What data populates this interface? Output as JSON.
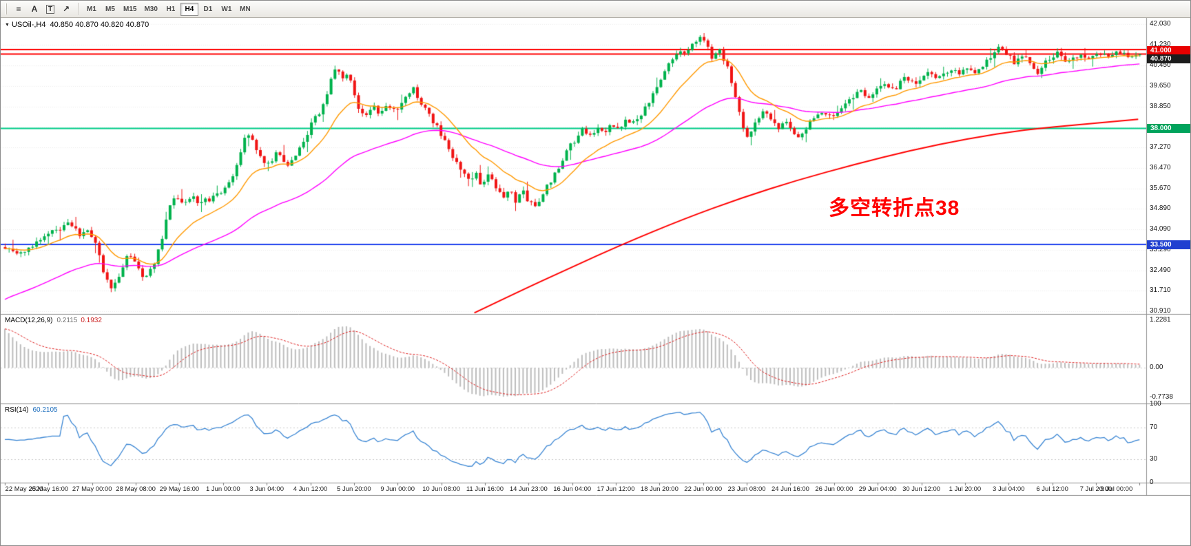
{
  "toolbar": {
    "tools": [
      {
        "name": "menu-lines-icon",
        "glyph": "≡",
        "boxed": false
      },
      {
        "name": "text-tool-a-icon",
        "glyph": "A",
        "boxed": false
      },
      {
        "name": "text-label-t-icon",
        "glyph": "T",
        "boxed": true
      },
      {
        "name": "arrow-tool-icon",
        "glyph": "↗",
        "boxed": false
      }
    ],
    "timeframes": [
      "M1",
      "M5",
      "M15",
      "M30",
      "H1",
      "H4",
      "D1",
      "W1",
      "MN"
    ],
    "active_timeframe": "H4"
  },
  "chart": {
    "symbol_title": "USOil-,H4",
    "ohlc": "40.850 40.870 40.820 40.870",
    "annotation": {
      "text": "多空转折点38",
      "color": "#ff0000"
    },
    "colors": {
      "bull": "#00b24c",
      "bear": "#f01414",
      "ma_fast": "#ff9900",
      "ma_slow": "#ff00ff",
      "ma_long": "#ff0000",
      "macd_hist": "#bdbdbd",
      "macd_signal": "#e02020",
      "rsi_line": "#3a86d4",
      "grid": "#ededed",
      "divider": "#909090",
      "level_red": "#ff0000",
      "level_green": "#00cc88",
      "level_blue": "#2244ee"
    },
    "price_axis": {
      "top_price": 42.28,
      "bottom_price": 30.78,
      "labels": [
        "42.030",
        "41.230",
        "40.450",
        "39.650",
        "38.850",
        "38.050",
        "37.270",
        "36.470",
        "35.670",
        "34.890",
        "34.090",
        "33.290",
        "32.490",
        "31.710",
        "30.910"
      ],
      "badges": [
        {
          "text": "41.000",
          "color": "#e80000",
          "price": 41.02
        },
        {
          "text": "40.870",
          "color": "#1c1c1c",
          "price": 40.7
        },
        {
          "text": "38.000",
          "color": "#00a35c",
          "price": 38.0
        },
        {
          "text": "33.500",
          "color": "#2040d0",
          "price": 33.5
        }
      ]
    },
    "levels": [
      {
        "price": 41.05,
        "color": "#ff0000",
        "width": 2
      },
      {
        "price": 40.88,
        "color": "#ff0000",
        "width": 2
      },
      {
        "price": 38.0,
        "color": "#00cc88",
        "width": 2
      },
      {
        "price": 33.5,
        "color": "#2244ee",
        "width": 2
      }
    ]
  },
  "chart_data": {
    "type": "candlestick",
    "symbol": "USOil",
    "timeframe": "H4",
    "n": 290,
    "seed": 9,
    "ma_fast_period": 16,
    "ma_slow_period": 55,
    "ma_slow_init": 31.3,
    "anchors": [
      [
        0.0,
        33.4
      ],
      [
        0.012,
        33.05
      ],
      [
        0.024,
        33.5
      ],
      [
        0.036,
        33.85
      ],
      [
        0.048,
        34.1
      ],
      [
        0.057,
        34.35
      ],
      [
        0.065,
        33.9
      ],
      [
        0.073,
        34.15
      ],
      [
        0.08,
        33.45
      ],
      [
        0.088,
        32.3
      ],
      [
        0.095,
        31.78
      ],
      [
        0.102,
        32.4
      ],
      [
        0.109,
        33.2
      ],
      [
        0.116,
        32.7
      ],
      [
        0.123,
        32.15
      ],
      [
        0.13,
        32.65
      ],
      [
        0.137,
        33.5
      ],
      [
        0.144,
        34.8
      ],
      [
        0.15,
        35.3
      ],
      [
        0.157,
        35.05
      ],
      [
        0.165,
        35.35
      ],
      [
        0.173,
        35.1
      ],
      [
        0.181,
        35.3
      ],
      [
        0.187,
        35.45
      ],
      [
        0.192,
        35.55
      ],
      [
        0.198,
        35.9
      ],
      [
        0.204,
        36.45
      ],
      [
        0.209,
        37.2
      ],
      [
        0.213,
        37.9
      ],
      [
        0.218,
        37.6
      ],
      [
        0.222,
        37.15
      ],
      [
        0.227,
        36.75
      ],
      [
        0.233,
        36.55
      ],
      [
        0.239,
        37.1
      ],
      [
        0.245,
        36.7
      ],
      [
        0.251,
        36.55
      ],
      [
        0.257,
        37.0
      ],
      [
        0.263,
        37.45
      ],
      [
        0.27,
        38.2
      ],
      [
        0.277,
        38.6
      ],
      [
        0.283,
        39.3
      ],
      [
        0.289,
        40.05
      ],
      [
        0.293,
        40.4
      ],
      [
        0.298,
        39.85
      ],
      [
        0.302,
        40.2
      ],
      [
        0.307,
        39.5
      ],
      [
        0.312,
        38.75
      ],
      [
        0.318,
        38.5
      ],
      [
        0.324,
        38.85
      ],
      [
        0.33,
        38.6
      ],
      [
        0.336,
        38.9
      ],
      [
        0.342,
        38.7
      ],
      [
        0.348,
        38.85
      ],
      [
        0.354,
        39.2
      ],
      [
        0.36,
        39.55
      ],
      [
        0.366,
        39.0
      ],
      [
        0.372,
        38.6
      ],
      [
        0.378,
        38.2
      ],
      [
        0.384,
        37.8
      ],
      [
        0.39,
        37.3
      ],
      [
        0.396,
        36.8
      ],
      [
        0.402,
        36.3
      ],
      [
        0.408,
        35.95
      ],
      [
        0.414,
        36.25
      ],
      [
        0.42,
        35.85
      ],
      [
        0.426,
        36.2
      ],
      [
        0.432,
        35.75
      ],
      [
        0.438,
        35.35
      ],
      [
        0.444,
        35.65
      ],
      [
        0.45,
        35.2
      ],
      [
        0.456,
        35.55
      ],
      [
        0.462,
        35.1
      ],
      [
        0.468,
        34.95
      ],
      [
        0.474,
        35.45
      ],
      [
        0.48,
        35.9
      ],
      [
        0.486,
        36.35
      ],
      [
        0.492,
        36.85
      ],
      [
        0.498,
        37.3
      ],
      [
        0.504,
        37.65
      ],
      [
        0.51,
        37.95
      ],
      [
        0.516,
        37.7
      ],
      [
        0.522,
        38.1
      ],
      [
        0.528,
        37.85
      ],
      [
        0.534,
        38.2
      ],
      [
        0.54,
        37.95
      ],
      [
        0.546,
        38.3
      ],
      [
        0.552,
        38.1
      ],
      [
        0.558,
        38.45
      ],
      [
        0.564,
        38.75
      ],
      [
        0.57,
        39.2
      ],
      [
        0.576,
        39.8
      ],
      [
        0.582,
        40.3
      ],
      [
        0.588,
        40.75
      ],
      [
        0.594,
        41.1
      ],
      [
        0.6,
        40.8
      ],
      [
        0.606,
        41.25
      ],
      [
        0.612,
        41.6
      ],
      [
        0.618,
        41.2
      ],
      [
        0.624,
        40.7
      ],
      [
        0.63,
        41.0
      ],
      [
        0.636,
        40.45
      ],
      [
        0.642,
        39.6
      ],
      [
        0.648,
        38.4
      ],
      [
        0.653,
        37.5
      ],
      [
        0.658,
        37.9
      ],
      [
        0.664,
        38.4
      ],
      [
        0.67,
        38.7
      ],
      [
        0.676,
        38.35
      ],
      [
        0.682,
        38.0
      ],
      [
        0.688,
        38.3
      ],
      [
        0.694,
        37.9
      ],
      [
        0.7,
        37.65
      ],
      [
        0.706,
        38.05
      ],
      [
        0.712,
        38.35
      ],
      [
        0.72,
        38.6
      ],
      [
        0.728,
        38.4
      ],
      [
        0.736,
        38.75
      ],
      [
        0.744,
        39.1
      ],
      [
        0.752,
        39.45
      ],
      [
        0.76,
        39.2
      ],
      [
        0.768,
        39.55
      ],
      [
        0.776,
        39.75
      ],
      [
        0.784,
        39.55
      ],
      [
        0.792,
        39.9
      ],
      [
        0.8,
        39.7
      ],
      [
        0.808,
        39.95
      ],
      [
        0.816,
        40.15
      ],
      [
        0.824,
        39.95
      ],
      [
        0.832,
        40.25
      ],
      [
        0.84,
        40.1
      ],
      [
        0.848,
        40.4
      ],
      [
        0.856,
        40.2
      ],
      [
        0.864,
        40.6
      ],
      [
        0.872,
        40.95
      ],
      [
        0.878,
        41.15
      ],
      [
        0.884,
        40.8
      ],
      [
        0.89,
        40.55
      ],
      [
        0.896,
        40.85
      ],
      [
        0.902,
        40.6
      ],
      [
        0.908,
        40.1
      ],
      [
        0.914,
        40.35
      ],
      [
        0.92,
        40.7
      ],
      [
        0.928,
        40.9
      ],
      [
        0.936,
        40.6
      ],
      [
        0.944,
        40.85
      ],
      [
        0.952,
        40.7
      ],
      [
        0.96,
        40.95
      ],
      [
        0.97,
        40.8
      ],
      [
        0.98,
        40.95
      ],
      [
        0.99,
        40.82
      ],
      [
        1.0,
        40.87
      ]
    ],
    "red_ma": [
      [
        0.415,
        30.85
      ],
      [
        0.46,
        31.8
      ],
      [
        0.5,
        32.6
      ],
      [
        0.545,
        33.5
      ],
      [
        0.6,
        34.5
      ],
      [
        0.65,
        35.3
      ],
      [
        0.7,
        36.0
      ],
      [
        0.75,
        36.6
      ],
      [
        0.8,
        37.15
      ],
      [
        0.85,
        37.6
      ],
      [
        0.9,
        37.95
      ],
      [
        0.95,
        38.15
      ],
      [
        1.0,
        38.35
      ]
    ]
  },
  "macd": {
    "label": "MACD(12,26,9)",
    "value_main": "0.2115",
    "value_signal": "0.1932",
    "axis": [
      "1.2281",
      "0.00",
      "-0.7738"
    ]
  },
  "rsi": {
    "label": "RSI(14)",
    "value": "60.2105",
    "axis": [
      100,
      70,
      30,
      0
    ],
    "levels": [
      70,
      30
    ]
  },
  "time_axis": {
    "labels": [
      "22 May 2020",
      "25 May 16:00",
      "27 May 00:00",
      "28 May 08:00",
      "29 May 16:00",
      "1 Jun 00:00",
      "3 Jun 04:00",
      "4 Jun 12:00",
      "5 Jun 20:00",
      "9 Jun 00:00",
      "10 Jun 08:00",
      "11 Jun 16:00",
      "14 Jun 23:00",
      "16 Jun 04:00",
      "17 Jun 12:00",
      "18 Jun 20:00",
      "22 Jun 00:00",
      "23 Jun 08:00",
      "24 Jun 16:00",
      "26 Jun 00:00",
      "29 Jun 04:00",
      "30 Jun 12:00",
      "1 Jul 20:00",
      "3 Jul 04:00",
      "6 Jul 12:00",
      "7 Jul 20:00",
      "9 Jul 00:00"
    ]
  }
}
